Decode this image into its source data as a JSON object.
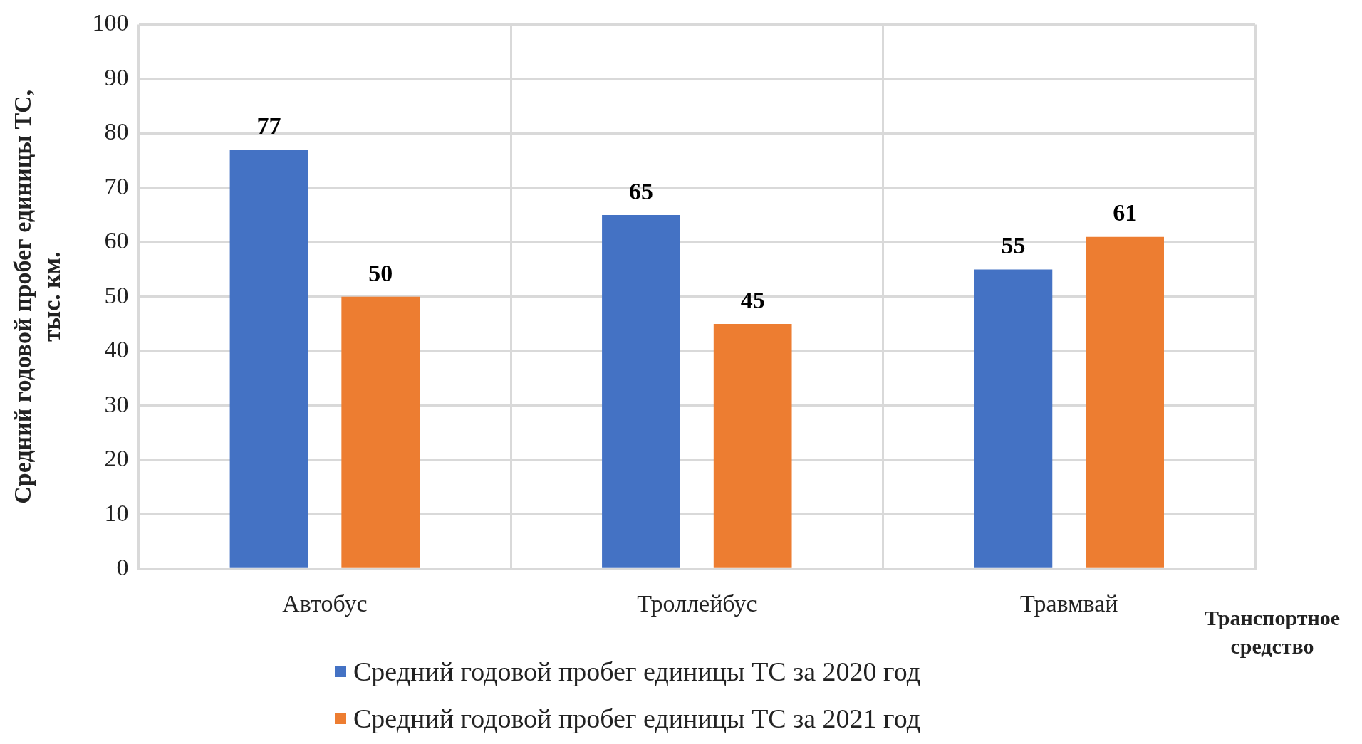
{
  "chart_data": {
    "type": "bar",
    "categories": [
      "Автобус",
      "Троллейбус",
      "Травмвай"
    ],
    "series": [
      {
        "name": "Средний годовой пробег единицы ТС за 2020 год",
        "color": "#4472c4",
        "values": [
          77,
          65,
          55
        ]
      },
      {
        "name": "Средний годовой пробег единицы ТС за 2021 год",
        "color": "#ed7d31",
        "values": [
          50,
          45,
          61
        ]
      }
    ],
    "ylabel": "Средний годовой пробег единицы ТС,\nтыс. км.",
    "xlabel": "Транспортное\nсредство",
    "ylim": [
      0,
      100
    ],
    "yticks": [
      0,
      10,
      20,
      30,
      40,
      50,
      60,
      70,
      80,
      90,
      100
    ],
    "grid": true,
    "data_labels": true,
    "legend": "bottom"
  }
}
